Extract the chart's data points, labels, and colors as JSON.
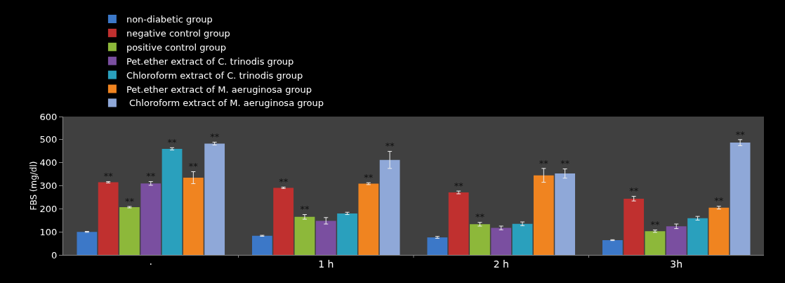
{
  "chart_data": {
    "type": "bar",
    "ylabel": "FBS (mg/dl)",
    "categories": [
      "·",
      "1 h",
      "2 h",
      "3h"
    ],
    "ylim": [
      0,
      600
    ],
    "yticks": [
      0,
      100,
      200,
      300,
      400,
      500,
      600
    ],
    "grid": false,
    "legend": "top",
    "series": [
      {
        "name": "non-diabetic group",
        "color": "#3c78c8",
        "values": [
          100,
          83,
          76,
          64
        ],
        "errors": [
          2,
          2,
          4,
          2
        ],
        "value_labels": [
          null,
          null,
          null,
          null
        ]
      },
      {
        "name": "negative control group",
        "color": "#c0302f",
        "values": [
          315,
          291,
          271,
          244
        ],
        "errors": [
          3,
          3,
          6,
          10
        ],
        "value_labels": [
          "**",
          "**",
          "**",
          "**"
        ]
      },
      {
        "name": "positive control group",
        "color": "#8db83a",
        "values": [
          207,
          165,
          133,
          103
        ],
        "errors": [
          3,
          10,
          8,
          5
        ],
        "value_labels": [
          "**",
          "**",
          "**",
          "**"
        ]
      },
      {
        "name": "Pet.ether extract of C. trinodis group",
        "color": "#7a4fa0",
        "values": [
          310,
          148,
          117,
          124
        ],
        "errors": [
          8,
          14,
          8,
          10
        ],
        "value_labels": [
          "**",
          null,
          null,
          null
        ]
      },
      {
        "name": "Chloroform extract of C. trinodis group",
        "color": "#2aa0bd",
        "values": [
          460,
          180,
          135,
          159
        ],
        "errors": [
          5,
          5,
          8,
          8
        ],
        "value_labels": [
          "**",
          null,
          null,
          null
        ]
      },
      {
        "name": "Pet.ether extract of M. aeruginosa group",
        "color": "#f08420",
        "values": [
          335,
          309,
          345,
          205
        ],
        "errors": [
          26,
          4,
          30,
          6
        ],
        "value_labels": [
          "**",
          "**",
          "**",
          "**"
        ]
      },
      {
        "name": " Chloroform extract of M. aeruginosa group",
        "color": "#8fa8d8",
        "values": [
          483,
          412,
          353,
          487
        ],
        "errors": [
          6,
          37,
          20,
          13
        ],
        "value_labels": [
          "**",
          "**",
          "**",
          "**"
        ]
      }
    ]
  }
}
